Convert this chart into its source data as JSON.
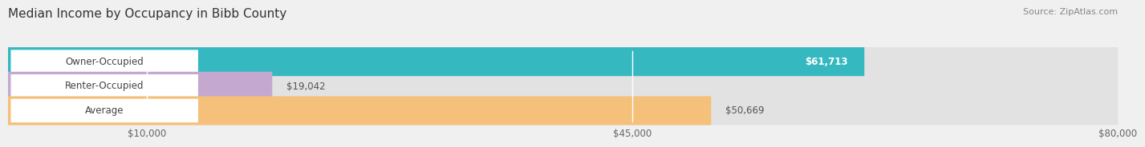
{
  "title": "Median Income by Occupancy in Bibb County",
  "source": "Source: ZipAtlas.com",
  "categories": [
    "Owner-Occupied",
    "Renter-Occupied",
    "Average"
  ],
  "values": [
    61713,
    19042,
    50669
  ],
  "bar_colors": [
    "#35b8c0",
    "#c4a8d0",
    "#f5c07a"
  ],
  "bar_labels": [
    "$61,713",
    "$19,042",
    "$50,669"
  ],
  "label_in_bar": [
    true,
    false,
    false
  ],
  "xmin": 0,
  "xmax": 80000,
  "xticks": [
    10000,
    45000,
    80000
  ],
  "xtick_labels": [
    "$10,000",
    "$45,000",
    "$80,000"
  ],
  "background_color": "#f0f0f0",
  "bar_bg_color": "#e2e2e2",
  "title_fontsize": 11,
  "label_fontsize": 8.5,
  "source_fontsize": 8,
  "value_fontsize": 8.5
}
